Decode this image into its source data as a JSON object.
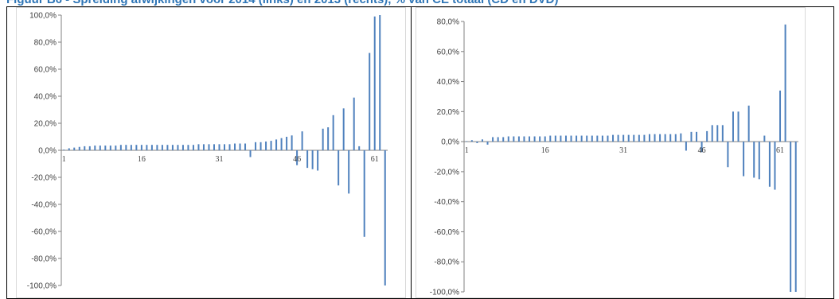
{
  "figure": {
    "title": "Figuur B6 - Spreiding afwijkingen voor 2014 (links) en 2013 (rechts), % van CE totaal (CD en DVD)"
  },
  "colors": {
    "bar": "#4f81bd",
    "axis": "#808080",
    "text": "#404040"
  },
  "chart_data": [
    {
      "type": "bar",
      "title": "",
      "xlabel": "",
      "ylabel": "",
      "ylim": [
        -100,
        100
      ],
      "y_ticks": [
        "100,0%",
        "80,0%",
        "60,0%",
        "40,0%",
        "20,0%",
        "0,0%",
        "-20,0%",
        "-40,0%",
        "-60,0%",
        "-80,0%",
        "-100,0%"
      ],
      "x_tick_labels": [
        "1",
        "16",
        "31",
        "46",
        "61"
      ],
      "x_tick_positions": [
        1,
        16,
        31,
        46,
        61
      ],
      "values": [
        0.5,
        1.5,
        2,
        2.5,
        3,
        3,
        3.5,
        3.5,
        3.5,
        3.5,
        3.5,
        4,
        4,
        4,
        4,
        4,
        4,
        4,
        4,
        4,
        4,
        4,
        4,
        4,
        4,
        4,
        4.5,
        4.5,
        4.5,
        4.5,
        4.5,
        4.5,
        4.5,
        5,
        5,
        5,
        -5,
        6,
        6,
        6.5,
        7,
        8,
        9,
        10,
        11,
        -11,
        14,
        -13,
        -14,
        -15,
        16,
        17,
        26,
        -26,
        31,
        -32,
        39,
        3,
        -64,
        72,
        99,
        100,
        -100
      ]
    },
    {
      "type": "bar",
      "title": "",
      "xlabel": "",
      "ylabel": "",
      "ylim": [
        -100,
        80
      ],
      "y_ticks": [
        "80,0%",
        "60,0%",
        "40,0%",
        "20,0%",
        "0,0%",
        "-20,0%",
        "-40,0%",
        "-60,0%",
        "-80,0%",
        "-100,0%"
      ],
      "x_tick_labels": [
        "1",
        "16",
        "31",
        "46",
        "61"
      ],
      "x_tick_positions": [
        1,
        16,
        31,
        46,
        61
      ],
      "values": [
        0.3,
        1,
        -1,
        1.5,
        -2,
        3,
        3,
        3,
        3.5,
        3.5,
        3.5,
        3.5,
        3.5,
        3.5,
        3.5,
        3.5,
        4,
        4,
        4,
        4,
        4,
        4,
        4,
        4,
        4,
        4,
        4,
        4,
        4.5,
        4.5,
        4.5,
        4.5,
        4.5,
        4.5,
        4.5,
        5,
        5,
        5,
        5,
        5,
        5,
        5.5,
        -6,
        6.5,
        6.5,
        -7,
        7,
        11,
        11,
        11,
        -17,
        20,
        20,
        -23,
        24,
        -24,
        -25,
        4,
        -30,
        -32,
        34,
        78,
        -100,
        -100
      ]
    }
  ]
}
